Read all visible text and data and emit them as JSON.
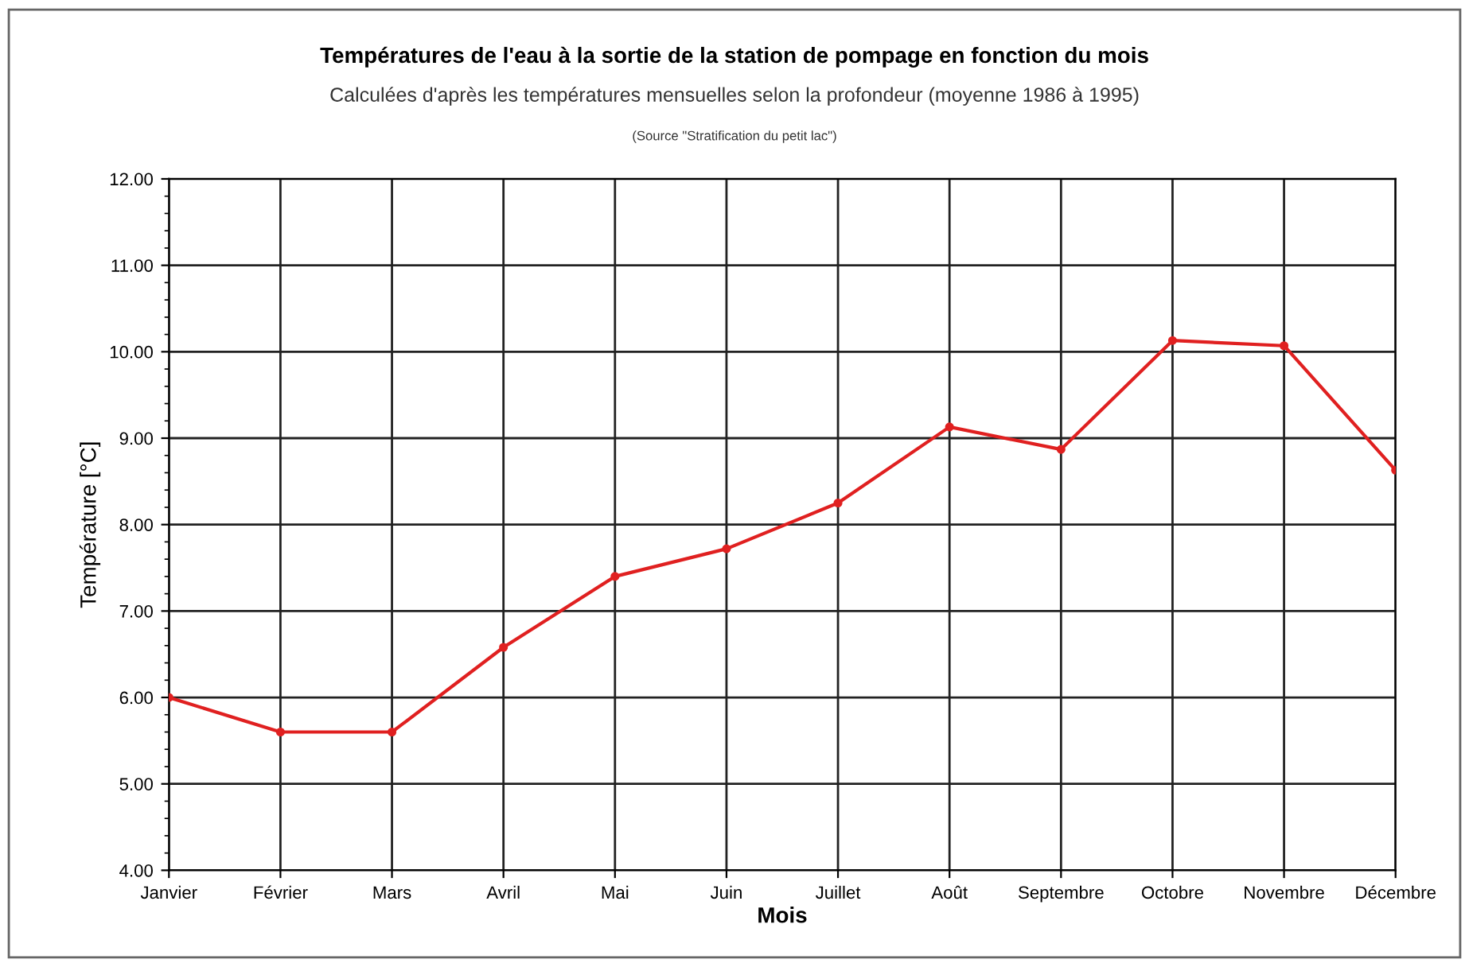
{
  "chart_data": {
    "type": "line",
    "title": "Températures de l'eau à la sortie de la station de pompage en fonction du mois",
    "subtitle": "Calculées d'après les températures mensuelles selon la profondeur (moyenne 1986 à 1995)",
    "annotations": [
      "(Source \"Stratification du petit lac\")"
    ],
    "xlabel": "Mois",
    "ylabel": "Température [°C]",
    "categories": [
      "Janvier",
      "Février",
      "Mars",
      "Avril",
      "Mai",
      "Juin",
      "Juillet",
      "Août",
      "Septembre",
      "Octobre",
      "Novembre",
      "Décembre"
    ],
    "series": [
      {
        "color": "#e02020",
        "values": [
          6.0,
          5.6,
          5.6,
          6.58,
          7.4,
          7.72,
          8.25,
          9.13,
          8.87,
          10.13,
          10.07,
          8.63
        ]
      }
    ],
    "ylim": [
      4,
      12
    ],
    "yticks": [
      {
        "value": 4,
        "label": "4.00"
      },
      {
        "value": 5,
        "label": "5.00"
      },
      {
        "value": 6,
        "label": "6.00"
      },
      {
        "value": 7,
        "label": "7.00"
      },
      {
        "value": 8,
        "label": "8.00"
      },
      {
        "value": 9,
        "label": "9.00"
      },
      {
        "value": 10,
        "label": "10.00"
      },
      {
        "value": 11,
        "label": "11.00"
      },
      {
        "value": 12,
        "label": "12.00"
      }
    ],
    "grid": true,
    "marker": "circle",
    "line_style": "solid"
  }
}
